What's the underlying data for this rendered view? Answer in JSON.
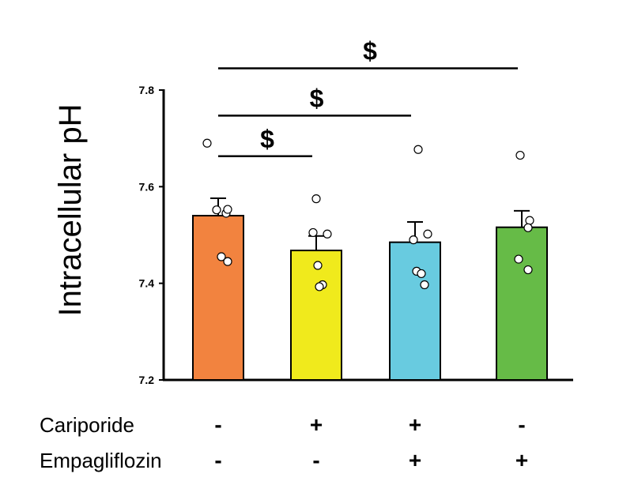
{
  "chart_data": {
    "type": "bar",
    "ylabel": "Intracellular pH",
    "ylim": [
      7.2,
      7.8
    ],
    "yticks": [
      "7.2",
      "7.4",
      "7.6",
      "7.8"
    ],
    "yticks_values": [
      7.2,
      7.4,
      7.6,
      7.8
    ],
    "colors": [
      "#f2833f",
      "#f0ea1c",
      "#68cbe0",
      "#66bb47"
    ],
    "values": [
      7.54,
      7.468,
      7.485,
      7.516
    ],
    "errors": [
      0.036,
      0.03,
      0.042,
      0.034
    ],
    "points": [
      [
        7.69,
        7.552,
        7.545,
        7.553,
        7.455,
        7.445
      ],
      [
        7.575,
        7.505,
        7.502,
        7.437,
        7.397,
        7.393
      ],
      [
        7.677,
        7.49,
        7.502,
        7.425,
        7.42,
        7.397
      ],
      [
        7.665,
        7.53,
        7.515,
        7.45,
        7.428
      ]
    ],
    "significance": [
      {
        "from": 0,
        "to": 1,
        "label": "$",
        "y": 7.663
      },
      {
        "from": 0,
        "to": 2,
        "label": "$",
        "y": 7.747
      },
      {
        "from": 0,
        "to": 3,
        "label": "$",
        "y": 7.845
      }
    ],
    "treatment_rows": [
      {
        "label": "Cariporide",
        "values": [
          "-",
          "+",
          "+",
          "-"
        ]
      },
      {
        "label": "Empagliflozin",
        "values": [
          "-",
          "-",
          "+",
          "+"
        ]
      }
    ]
  }
}
